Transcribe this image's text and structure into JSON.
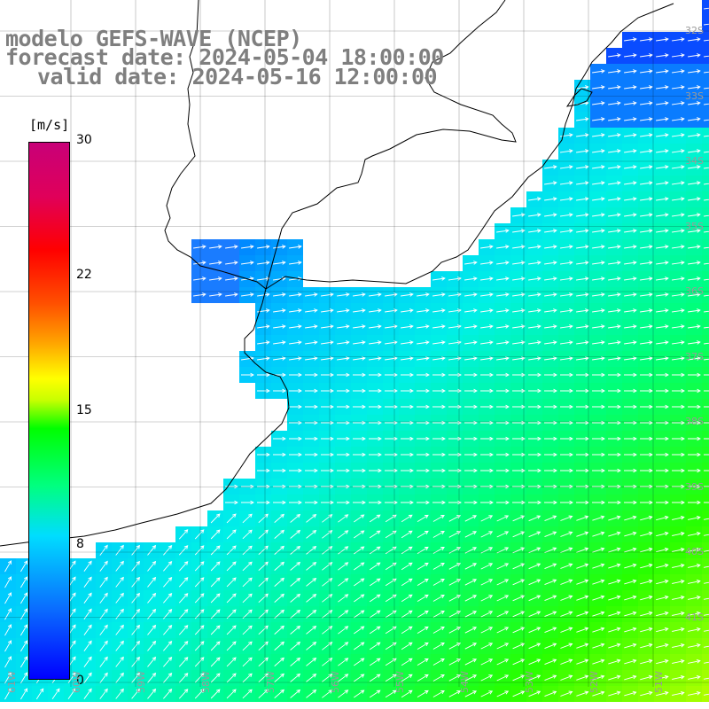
{
  "header": {
    "model_line": "modelo GEFS-WAVE (NCEP)",
    "forecast_line": "forecast date: 2024-05-04 18:00:00",
    "valid_line": "valid date: 2024-05-16 12:00:00"
  },
  "colorbar": {
    "unit": "[m/s]",
    "ticks": [
      "30",
      "22",
      "15",
      "8",
      "0"
    ]
  },
  "lat_labels": [
    "32S",
    "33S",
    "34S",
    "35S",
    "36S",
    "37S",
    "38S",
    "39S",
    "40S",
    "41S"
  ],
  "lon_labels": [
    "61W",
    "60W",
    "59W",
    "58W",
    "57W",
    "56W",
    "55W",
    "54W",
    "53W",
    "52W",
    "51W"
  ],
  "colors": {
    "land": "#ffffff",
    "grid": "#000000",
    "arrows": "#ffffff",
    "header_text": "#7f7f7f"
  }
}
